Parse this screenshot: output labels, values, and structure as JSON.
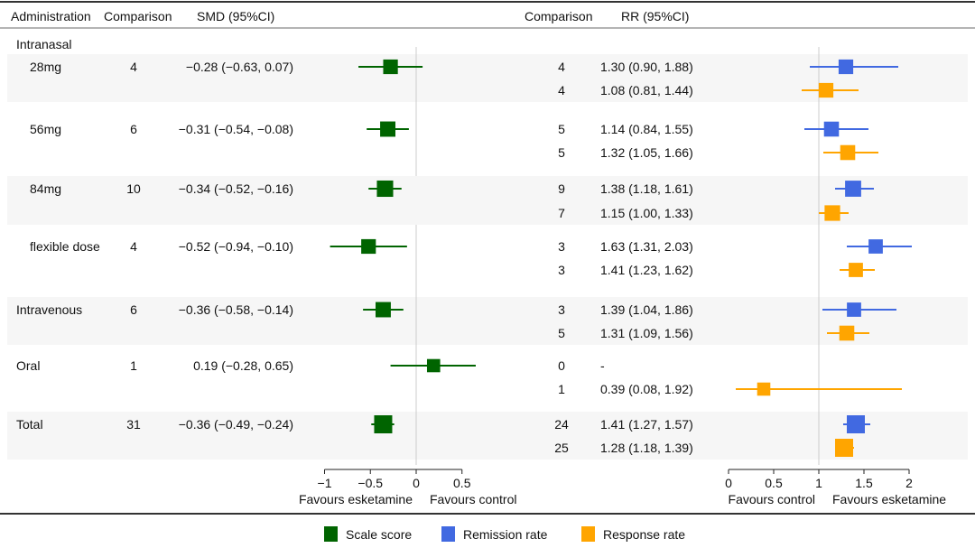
{
  "chart_data": {
    "type": "forest",
    "headers": {
      "administration": "Administration",
      "comparison_left": "Comparison",
      "smd": "SMD (95%CI)",
      "comparison_right": "Comparison",
      "rr": "RR (95%CI)"
    },
    "groups": [
      {
        "label": "Intranasal",
        "rows": []
      },
      {
        "label": "28mg",
        "sub": true,
        "smd": {
          "n": "4",
          "text": "−0.28 (−0.63, 0.07)",
          "est": -0.28,
          "lo": -0.63,
          "hi": 0.07
        },
        "remission": {
          "n": "4",
          "text": "1.30 (0.90, 1.88)",
          "est": 1.3,
          "lo": 0.9,
          "hi": 1.88
        },
        "response": {
          "n": "4",
          "text": "1.08 (0.81, 1.44)",
          "est": 1.08,
          "lo": 0.81,
          "hi": 1.44
        }
      },
      {
        "label": "56mg",
        "sub": true,
        "smd": {
          "n": "6",
          "text": "−0.31 (−0.54, −0.08)",
          "est": -0.31,
          "lo": -0.54,
          "hi": -0.08
        },
        "remission": {
          "n": "5",
          "text": "1.14 (0.84, 1.55)",
          "est": 1.14,
          "lo": 0.84,
          "hi": 1.55
        },
        "response": {
          "n": "5",
          "text": "1.32 (1.05, 1.66)",
          "est": 1.32,
          "lo": 1.05,
          "hi": 1.66
        }
      },
      {
        "label": "84mg",
        "sub": true,
        "smd": {
          "n": "10",
          "text": "−0.34 (−0.52, −0.16)",
          "est": -0.34,
          "lo": -0.52,
          "hi": -0.16
        },
        "remission": {
          "n": "9",
          "text": "1.38 (1.18, 1.61)",
          "est": 1.38,
          "lo": 1.18,
          "hi": 1.61
        },
        "response": {
          "n": "7",
          "text": "1.15 (1.00, 1.33)",
          "est": 1.15,
          "lo": 1.0,
          "hi": 1.33
        }
      },
      {
        "label": "flexible dose",
        "sub": true,
        "smd": {
          "n": "4",
          "text": "−0.52 (−0.94, −0.10)",
          "est": -0.52,
          "lo": -0.94,
          "hi": -0.1
        },
        "remission": {
          "n": "3",
          "text": "1.63 (1.31, 2.03)",
          "est": 1.63,
          "lo": 1.31,
          "hi": 2.03
        },
        "response": {
          "n": "3",
          "text": "1.41 (1.23, 1.62)",
          "est": 1.41,
          "lo": 1.23,
          "hi": 1.62
        }
      },
      {
        "label": "Intravenous",
        "smd": {
          "n": "6",
          "text": "−0.36 (−0.58, −0.14)",
          "est": -0.36,
          "lo": -0.58,
          "hi": -0.14
        },
        "remission": {
          "n": "3",
          "text": "1.39 (1.04, 1.86)",
          "est": 1.39,
          "lo": 1.04,
          "hi": 1.86
        },
        "response": {
          "n": "5",
          "text": "1.31 (1.09, 1.56)",
          "est": 1.31,
          "lo": 1.09,
          "hi": 1.56
        }
      },
      {
        "label": "Oral",
        "smd": {
          "n": "1",
          "text": "0.19 (−0.28, 0.65)",
          "est": 0.19,
          "lo": -0.28,
          "hi": 0.65
        },
        "remission": {
          "n": "0",
          "text": "-",
          "est": null,
          "lo": null,
          "hi": null
        },
        "response": {
          "n": "1",
          "text": "0.39 (0.08, 1.92)",
          "est": 0.39,
          "lo": 0.08,
          "hi": 1.92
        }
      },
      {
        "label": "Total",
        "smd": {
          "n": "31",
          "text": "−0.36 (−0.49, −0.24)",
          "est": -0.36,
          "lo": -0.49,
          "hi": -0.24
        },
        "remission": {
          "n": "24",
          "text": "1.41 (1.27, 1.57)",
          "est": 1.41,
          "lo": 1.27,
          "hi": 1.57
        },
        "response": {
          "n": "25",
          "text": "1.28 (1.18, 1.39)",
          "est": 1.28,
          "lo": 1.18,
          "hi": 1.39
        }
      }
    ],
    "left_axis": {
      "range": [
        -1,
        0.5
      ],
      "ticks": [
        "−1",
        "−0.5",
        "0",
        "0.5"
      ],
      "tick_values": [
        -1,
        -0.5,
        0,
        0.5
      ],
      "ref": 0,
      "label_left": "Favours esketamine",
      "label_right": "Favours control"
    },
    "right_axis": {
      "range": [
        0,
        2
      ],
      "ticks": [
        "0",
        "0.5",
        "1",
        "1.5",
        "2"
      ],
      "tick_values": [
        0,
        0.5,
        1,
        1.5,
        2
      ],
      "ref": 1,
      "label_left": "Favours control",
      "label_right": "Favours esketamine"
    },
    "legend": [
      {
        "label": "Scale score",
        "color": "#006400"
      },
      {
        "label": "Remission rate",
        "color": "#4169E1"
      },
      {
        "label": "Response rate",
        "color": "#FFA500"
      }
    ]
  }
}
